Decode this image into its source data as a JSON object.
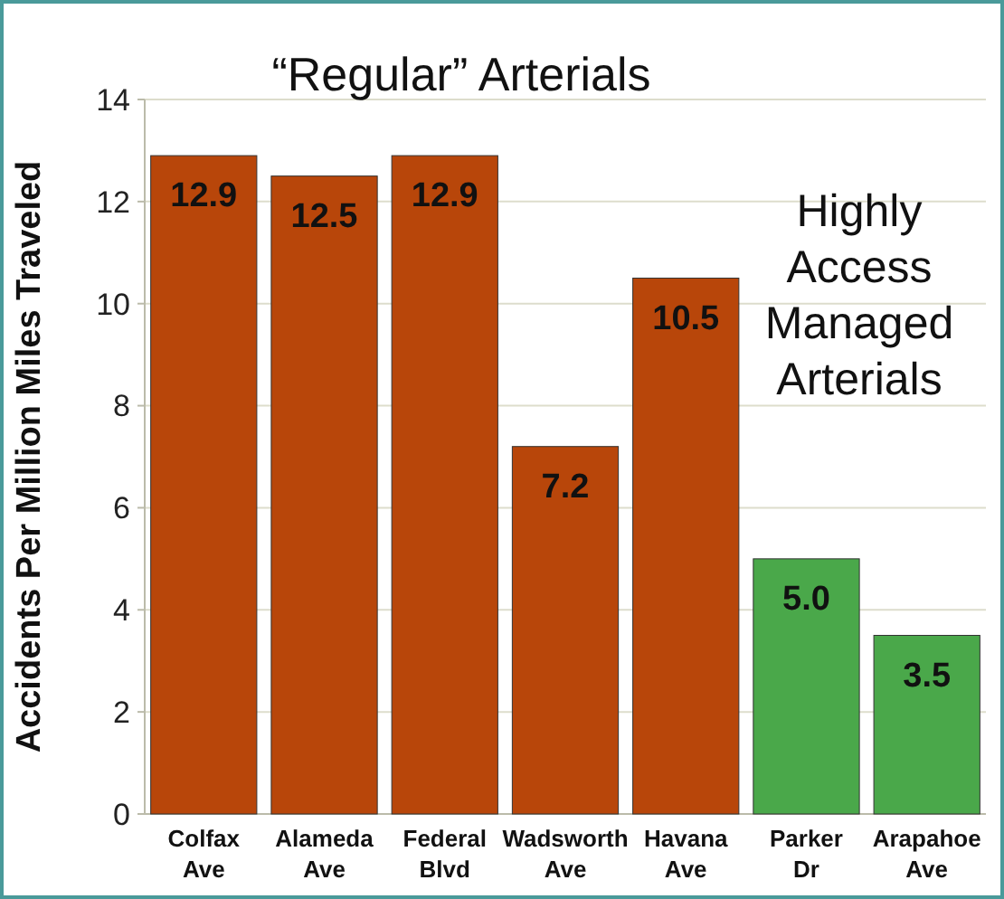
{
  "chart_data": {
    "type": "bar",
    "ylabel": "Accidents Per Million Miles Traveled",
    "categories": [
      "Colfax Ave",
      "Alameda Ave",
      "Federal Blvd",
      "Wadsworth Ave",
      "Havana Ave",
      "Parker Dr",
      "Arapahoe Ave"
    ],
    "values": [
      12.9,
      12.5,
      12.9,
      7.2,
      10.5,
      5.0,
      3.5
    ],
    "value_labels": [
      "12.9",
      "12.5",
      "12.9",
      "7.2",
      "10.5",
      "5.0",
      "3.5"
    ],
    "colors": [
      "#b8460a",
      "#b8460a",
      "#b8460a",
      "#b8460a",
      "#b8460a",
      "#4aa84a",
      "#4aa84a"
    ],
    "ylim": [
      0,
      14
    ],
    "yticks": [
      0,
      2,
      4,
      6,
      8,
      10,
      12,
      14
    ],
    "grid": "y",
    "annotations": [
      "“Regular” Arterials",
      "Highly Access Managed Arterials"
    ]
  }
}
